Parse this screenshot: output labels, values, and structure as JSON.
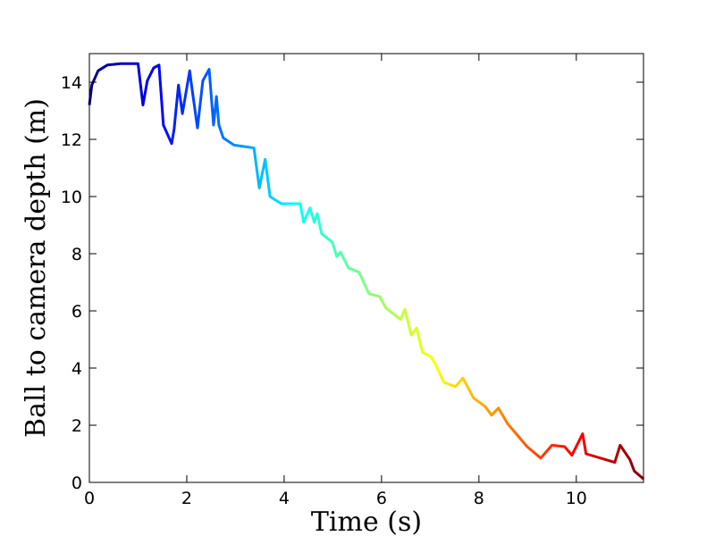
{
  "chart_data": {
    "type": "line",
    "x_label": "Time (s)",
    "y_label": "Ball to camera depth (m)",
    "colormap": "jet",
    "xlim": [
      0,
      11.38
    ],
    "ylim": [
      0,
      15
    ],
    "xticks": [
      0,
      2,
      4,
      6,
      8,
      10
    ],
    "yticks": [
      0,
      2,
      4,
      6,
      8,
      10,
      12,
      14
    ],
    "x": [
      0,
      0.05,
      0.18,
      0.37,
      0.64,
      1.0,
      1.1,
      1.19,
      1.32,
      1.43,
      1.52,
      1.69,
      1.74,
      1.83,
      1.91,
      2.06,
      2.11,
      2.22,
      2.33,
      2.46,
      2.55,
      2.61,
      2.66,
      2.75,
      2.97,
      3.38,
      3.49,
      3.61,
      3.71,
      3.94,
      4.33,
      4.4,
      4.53,
      4.62,
      4.68,
      4.77,
      4.99,
      5.08,
      5.16,
      5.32,
      5.54,
      5.74,
      5.96,
      6.09,
      6.39,
      6.48,
      6.61,
      6.72,
      6.84,
      7.01,
      7.1,
      7.28,
      7.52,
      7.67,
      7.89,
      8.13,
      8.26,
      8.4,
      8.59,
      8.99,
      9.27,
      9.5,
      9.76,
      9.91,
      10.13,
      10.2,
      10.79,
      10.9,
      11.1,
      11.19,
      11.38
    ],
    "series": [
      {
        "values": [
          13.2,
          13.9,
          14.4,
          14.6,
          14.65,
          14.65,
          13.2,
          14.05,
          14.5,
          14.6,
          12.5,
          11.85,
          12.35,
          13.9,
          12.9,
          14.4,
          13.75,
          12.4,
          14.05,
          14.45,
          12.5,
          13.5,
          12.5,
          12.05,
          11.8,
          11.7,
          10.3,
          11.3,
          10.0,
          9.75,
          9.75,
          9.1,
          9.6,
          9.1,
          9.4,
          8.7,
          8.4,
          7.9,
          8.05,
          7.5,
          7.35,
          6.6,
          6.5,
          6.1,
          5.7,
          6.05,
          5.15,
          5.4,
          4.55,
          4.4,
          4.15,
          3.5,
          3.35,
          3.65,
          2.95,
          2.65,
          2.35,
          2.6,
          2.05,
          1.25,
          0.85,
          1.3,
          1.25,
          0.95,
          1.7,
          1.0,
          0.7,
          1.3,
          0.8,
          0.4,
          0.12
        ]
      }
    ]
  }
}
